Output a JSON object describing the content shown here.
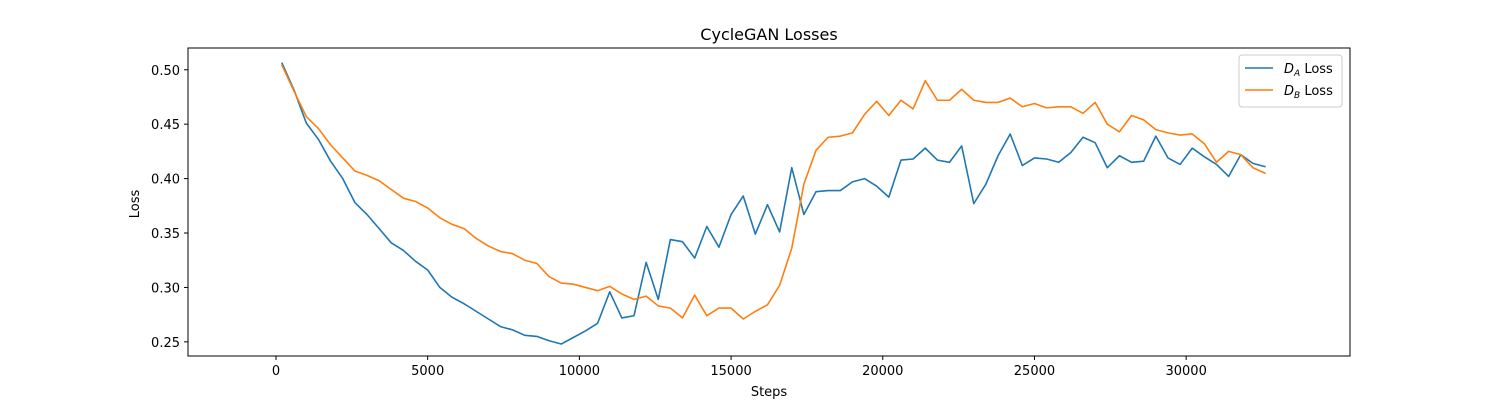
{
  "chart_data": {
    "type": "line",
    "title": "CycleGAN  Losses",
    "xlabel": "Steps",
    "ylabel": "Loss",
    "xlim": [
      -2900,
      35400
    ],
    "ylim": [
      0.237,
      0.52
    ],
    "xticks": [
      0,
      5000,
      10000,
      15000,
      20000,
      25000,
      30000
    ],
    "yticks": [
      0.25,
      0.3,
      0.35,
      0.4,
      0.45,
      0.5
    ],
    "grid": false,
    "legend": "top-right",
    "x": [
      200,
      600,
      1000,
      1400,
      1800,
      2200,
      2600,
      3000,
      3400,
      3800,
      4200,
      4600,
      5000,
      5400,
      5800,
      6200,
      6600,
      7000,
      7400,
      7800,
      8200,
      8600,
      9000,
      9400,
      9800,
      10200,
      10600,
      11000,
      11400,
      11800,
      12200,
      12600,
      13000,
      13400,
      13800,
      14200,
      14600,
      15000,
      15400,
      15800,
      16200,
      16600,
      17000,
      17400,
      17800,
      18200,
      18600,
      19000,
      19400,
      19800,
      20200,
      20600,
      21000,
      21400,
      21800,
      22200,
      22600,
      23000,
      23400,
      23800,
      24200,
      24600,
      25000,
      25400,
      25800,
      26200,
      26600,
      27000,
      27400,
      27800,
      28200,
      28600,
      29000,
      29400,
      29800,
      30200,
      30600,
      31000,
      31400,
      31800,
      32200,
      32600
    ],
    "series": [
      {
        "name": "D_A Loss",
        "label_main": "D",
        "label_sub": "A",
        "label_suffix": " Loss",
        "color": "#1f77b4",
        "values": [
          0.506,
          0.481,
          0.451,
          0.436,
          0.416,
          0.4,
          0.378,
          0.367,
          0.354,
          0.341,
          0.334,
          0.324,
          0.316,
          0.3,
          0.291,
          0.285,
          0.278,
          0.271,
          0.264,
          0.261,
          0.256,
          0.255,
          0.251,
          0.248,
          0.254,
          0.26,
          0.267,
          0.296,
          0.272,
          0.274,
          0.323,
          0.289,
          0.344,
          0.342,
          0.327,
          0.356,
          0.337,
          0.367,
          0.384,
          0.349,
          0.376,
          0.351,
          0.41,
          0.367,
          0.388,
          0.389,
          0.389,
          0.397,
          0.4,
          0.393,
          0.383,
          0.417,
          0.418,
          0.428,
          0.417,
          0.415,
          0.43,
          0.377,
          0.395,
          0.421,
          0.441,
          0.412,
          0.419,
          0.418,
          0.415,
          0.424,
          0.438,
          0.433,
          0.41,
          0.421,
          0.415,
          0.416,
          0.439,
          0.419,
          0.413,
          0.428,
          0.42,
          0.413,
          0.402,
          0.422,
          0.414,
          0.411
        ]
      },
      {
        "name": "D_B Loss",
        "label_main": "D",
        "label_sub": "B",
        "label_suffix": " Loss",
        "color": "#ff7f0e",
        "values": [
          0.504,
          0.48,
          0.457,
          0.446,
          0.431,
          0.419,
          0.407,
          0.403,
          0.398,
          0.39,
          0.382,
          0.379,
          0.373,
          0.364,
          0.358,
          0.354,
          0.345,
          0.338,
          0.333,
          0.331,
          0.325,
          0.322,
          0.31,
          0.304,
          0.303,
          0.3,
          0.297,
          0.301,
          0.294,
          0.289,
          0.292,
          0.283,
          0.281,
          0.272,
          0.293,
          0.274,
          0.281,
          0.281,
          0.271,
          0.278,
          0.284,
          0.302,
          0.336,
          0.395,
          0.426,
          0.438,
          0.439,
          0.442,
          0.459,
          0.471,
          0.458,
          0.472,
          0.464,
          0.49,
          0.472,
          0.472,
          0.482,
          0.472,
          0.47,
          0.47,
          0.474,
          0.466,
          0.469,
          0.465,
          0.466,
          0.466,
          0.46,
          0.47,
          0.45,
          0.443,
          0.458,
          0.454,
          0.445,
          0.442,
          0.44,
          0.441,
          0.432,
          0.415,
          0.425,
          0.422,
          0.41,
          0.405
        ]
      }
    ]
  }
}
